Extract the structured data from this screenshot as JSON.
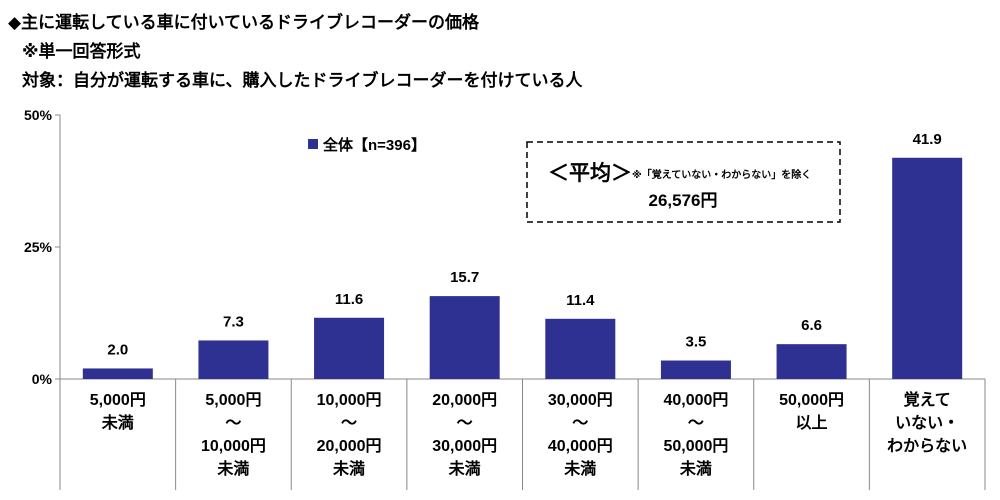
{
  "header": {
    "title": "◆主に運転している車に付いているドライブレコーダーの価格",
    "note": "※単一回答形式",
    "target": "対象：自分が運転する車に、購入したドライブレコーダーを付けている人"
  },
  "average_box": {
    "label": "＜平均＞",
    "note": "※「覚えていない・わからない」を除く",
    "value": "26,576円"
  },
  "chart_data": {
    "type": "bar",
    "title": "主に運転している車に付いているドライブレコーダーの価格",
    "categories": [
      [
        "5,000円",
        "未満"
      ],
      [
        "5,000円",
        "～",
        "10,000円",
        "未満"
      ],
      [
        "10,000円",
        "～",
        "20,000円",
        "未満"
      ],
      [
        "20,000円",
        "～",
        "30,000円",
        "未満"
      ],
      [
        "30,000円",
        "～",
        "40,000円",
        "未満"
      ],
      [
        "40,000円",
        "～",
        "50,000円",
        "未満"
      ],
      [
        "50,000円",
        "以上"
      ],
      [
        "覚えて",
        "いない・",
        "わからない"
      ]
    ],
    "series": [
      {
        "name": "全体【n=396】",
        "color": "#2E3192",
        "values": [
          2.0,
          7.3,
          11.6,
          15.7,
          11.4,
          3.5,
          6.6,
          41.9
        ]
      }
    ],
    "data_labels": [
      "2.0",
      "7.3",
      "11.6",
      "15.7",
      "11.4",
      "3.5",
      "6.6",
      "41.9"
    ],
    "ylim": [
      0,
      50
    ],
    "yticks": [
      "0%",
      "25%",
      "50%"
    ],
    "ytick_values": [
      0,
      25,
      50
    ],
    "legend_position": "top-left",
    "grid": false
  }
}
